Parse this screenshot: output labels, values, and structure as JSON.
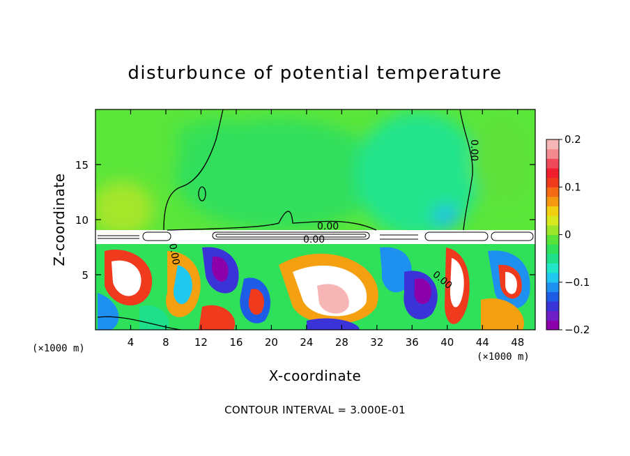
{
  "chart_data": {
    "type": "heatmap",
    "title": "disturbunce of potential temperature",
    "xlabel": "X-coordinate",
    "ylabel": "Z-coordinate",
    "x_unit": "(×1000 m)",
    "x_unit_right": "(×1000 m)",
    "xlim": [
      0,
      50
    ],
    "ylim": [
      0,
      20
    ],
    "x_ticks": [
      4,
      8,
      12,
      16,
      20,
      24,
      28,
      32,
      36,
      40,
      44,
      48
    ],
    "y_ticks": [
      5,
      10,
      15
    ],
    "colorbar": {
      "range": [
        -0.2,
        0.2
      ],
      "ticks": [
        "0.2",
        "0.1",
        "0",
        "−0.1",
        "−0.2"
      ],
      "tick_values": [
        0.2,
        0.1,
        0,
        -0.1,
        -0.2
      ],
      "colors": [
        "#8B00A8",
        "#6F1FC6",
        "#3A33D8",
        "#1E5CE6",
        "#1E90F0",
        "#20C8F0",
        "#22E6C8",
        "#1EE08A",
        "#2EE05A",
        "#58E23A",
        "#9EE62A",
        "#D8E81E",
        "#F0D010",
        "#F59A10",
        "#F56A14",
        "#F03A1E",
        "#F01E2E",
        "#F04A5A",
        "#F28A90",
        "#F6B6B6"
      ]
    },
    "contour_labels": [
      "0.00",
      "0.00",
      "0.00",
      "0.00",
      "0.00"
    ],
    "contour_interval": "CONTOUR INTERVAL = 3.000E-01"
  }
}
